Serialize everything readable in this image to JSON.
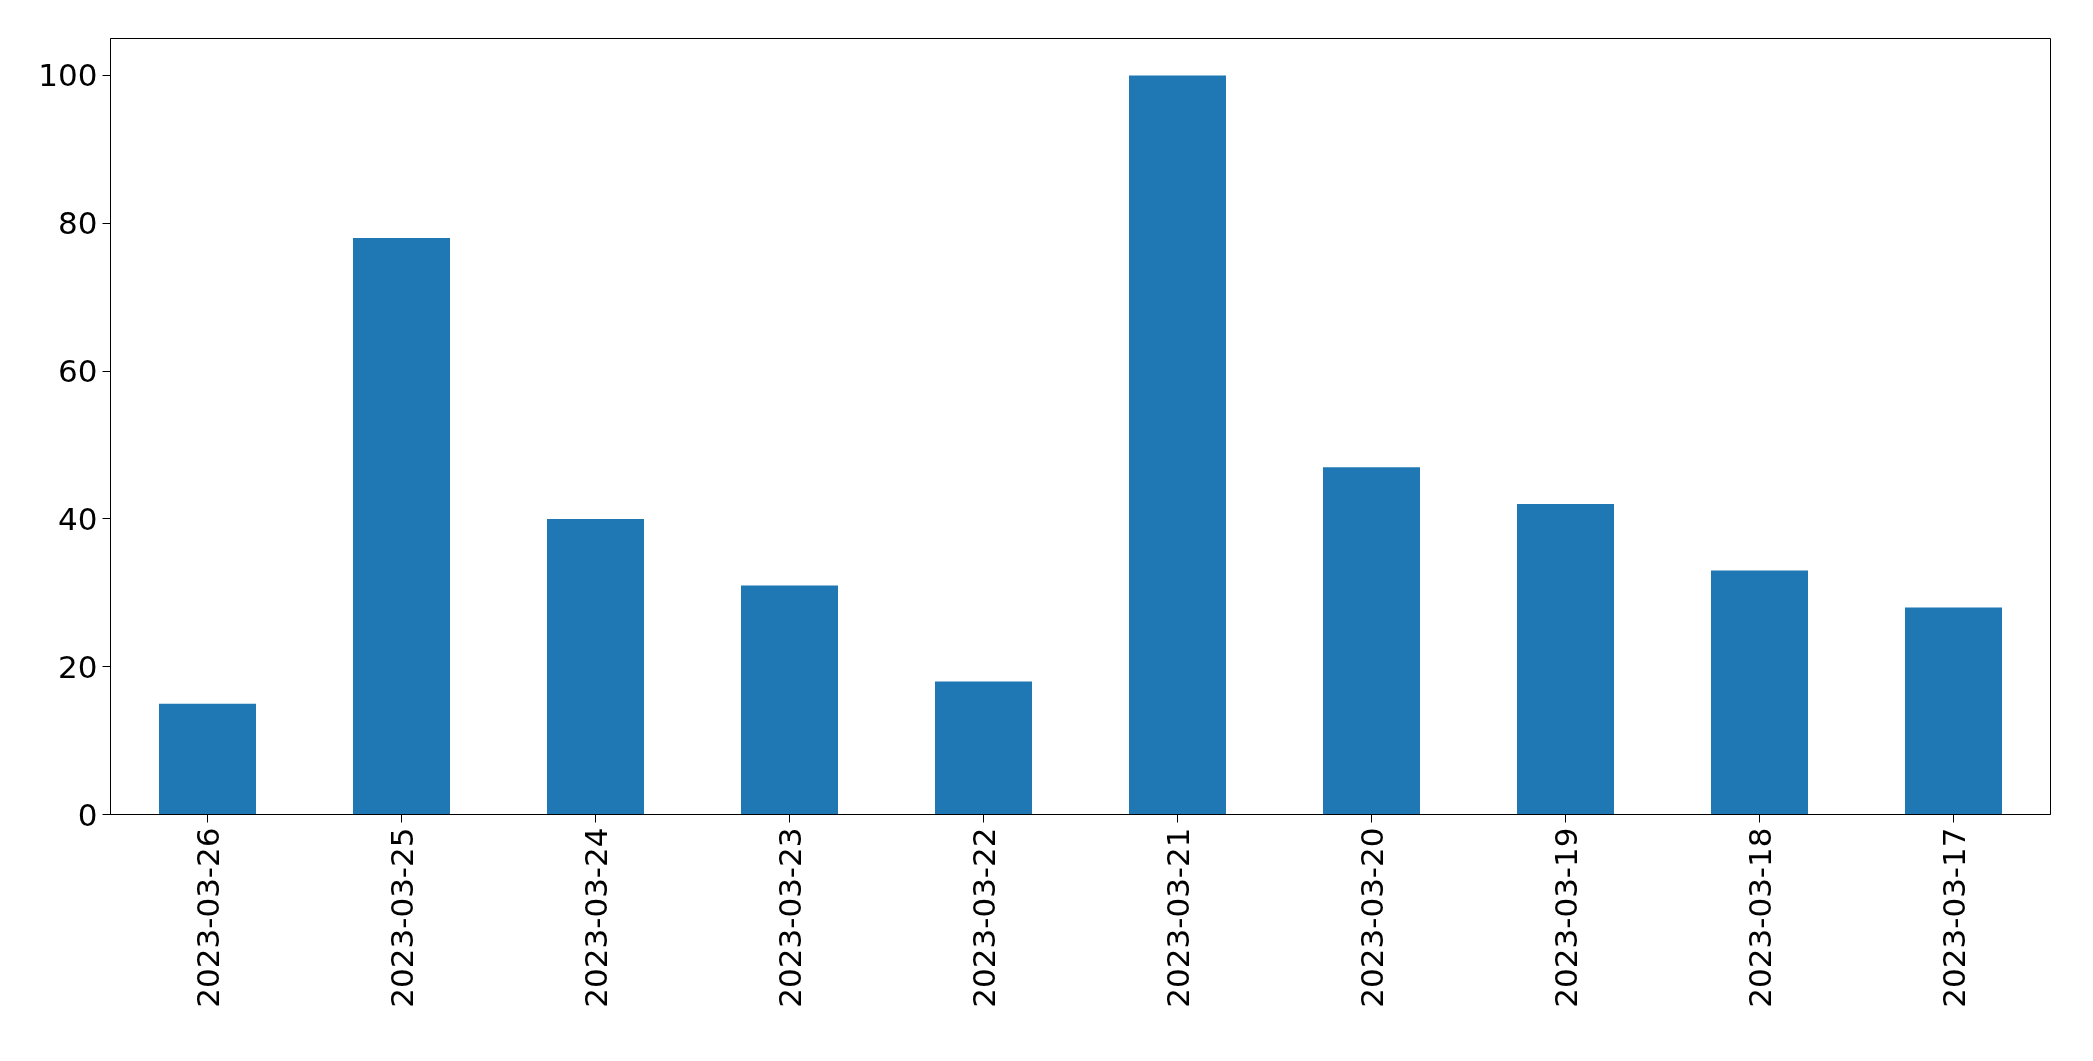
{
  "chart_data": {
    "type": "bar",
    "categories": [
      "2023-03-26",
      "2023-03-25",
      "2023-03-24",
      "2023-03-23",
      "2023-03-22",
      "2023-03-21",
      "2023-03-20",
      "2023-03-19",
      "2023-03-18",
      "2023-03-17"
    ],
    "values": [
      15,
      78,
      40,
      31,
      18,
      100,
      47,
      42,
      33,
      28
    ],
    "color": "#1f77b4",
    "ylim": [
      0,
      105
    ],
    "yticks": [
      0,
      20,
      40,
      60,
      80,
      100
    ],
    "grid": false
  }
}
